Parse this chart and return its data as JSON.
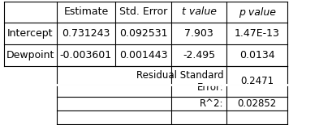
{
  "top_headers": [
    "",
    "Estimate",
    "Std. Error",
    "t value",
    "p value"
  ],
  "top_rows": [
    [
      "Intercept",
      "0.731243",
      "0.092531",
      "7.903",
      "1.47E-13"
    ],
    [
      "Dewpoint",
      "-0.003601",
      "0.001443",
      "-2.495",
      "0.0134"
    ]
  ],
  "bottom_label": "Residual Standard\nError:",
  "bottom_label2": "R^2:",
  "bottom_val1": "0.2471",
  "bottom_val2": "0.02852",
  "bg_color": "#ffffff",
  "border_color": "#000000",
  "font_size": 9
}
